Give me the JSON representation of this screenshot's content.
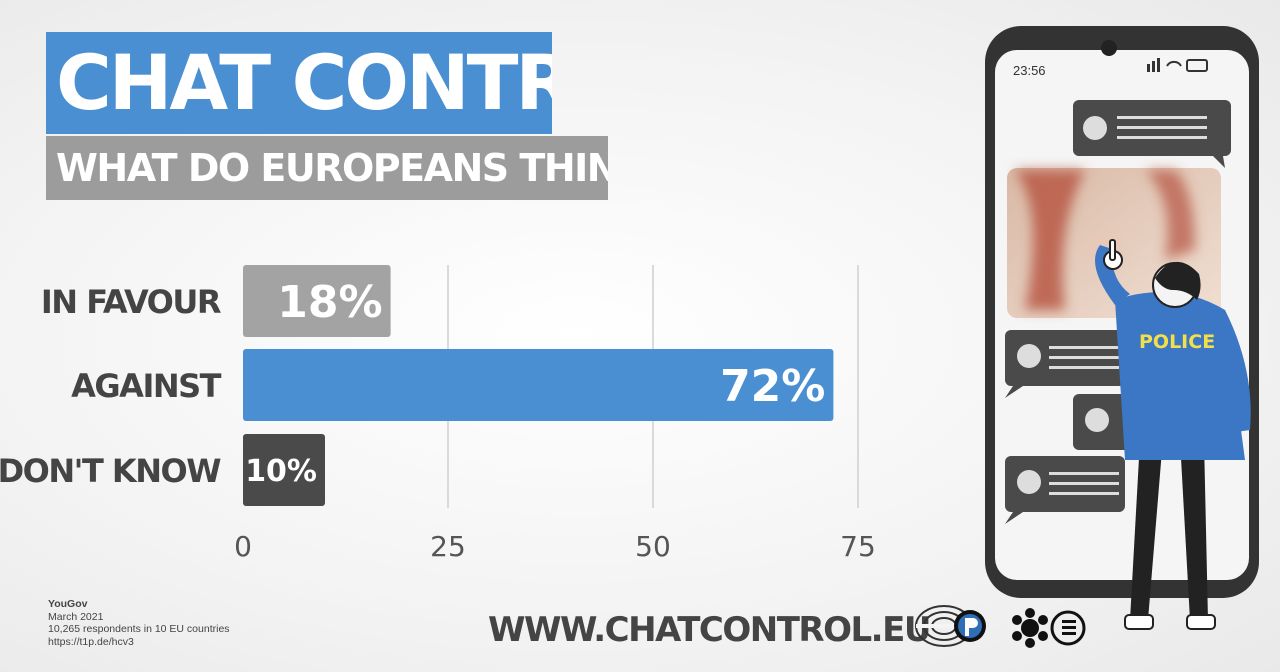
{
  "title": "CHAT CONTROL",
  "subtitle": "WHAT DO EUROPEANS THINK?",
  "chart_data": {
    "type": "bar",
    "orientation": "horizontal",
    "categories": [
      "IN FAVOUR",
      "AGAINST",
      "DON'T KNOW"
    ],
    "values": [
      18,
      72,
      10
    ],
    "value_labels": [
      "18%",
      "72%",
      "10%"
    ],
    "colors": [
      "#a3a3a3",
      "#4a8fd2",
      "#4a4a4a"
    ],
    "xticks": [
      0,
      25,
      50,
      75
    ],
    "xlim": [
      0,
      75
    ],
    "grid": true
  },
  "source": {
    "name": "YouGov",
    "date": "March 2021",
    "respondents": "10,265 respondents in 10 EU countries",
    "link": "https://t1p.de/hcv3"
  },
  "website": "WWW.CHATCONTROL.EU",
  "phone": {
    "time": "23:56",
    "police_label": "POLICE"
  },
  "logos": [
    "eu-parliament-logo",
    "pirate-party-logo",
    "greens-efa-logo"
  ]
}
